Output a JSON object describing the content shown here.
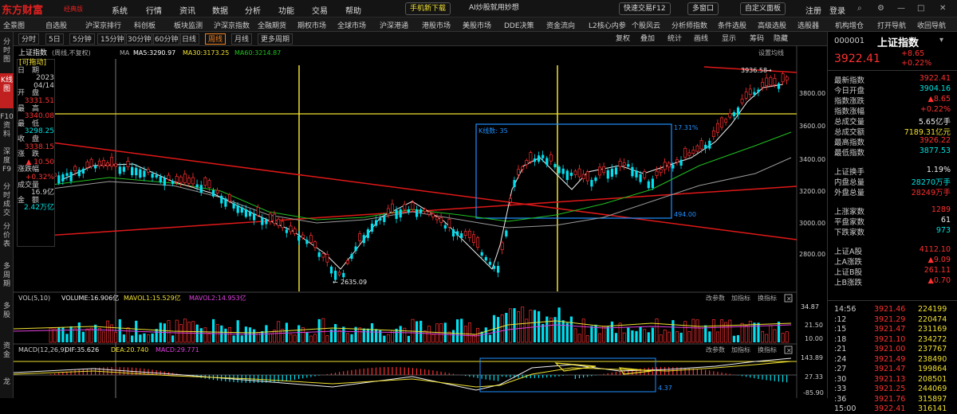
{
  "app": {
    "logo": "东方财富",
    "edition": "经典版"
  },
  "menus": [
    "系统",
    "行情",
    "资讯",
    "数据",
    "分析",
    "功能",
    "交易",
    "帮助"
  ],
  "top_actions": [
    "手机新下载",
    "AI炒股就用妙想",
    "快速交易F12",
    "多窗口",
    "自定义面板"
  ],
  "top_right": [
    "注册",
    "登录"
  ],
  "nav": [
    "全景图",
    "自选股",
    "沪深京排行",
    "科创板",
    "板块监测",
    "沪深京指数",
    "全融期货",
    "期权市场",
    "全球市场",
    "沪深港通",
    "港股市场",
    "美股市场",
    "DDE决策",
    "资金流向",
    "L2核心内参",
    "个股风云",
    "分析师指数",
    "条件选股",
    "高级选股",
    "选股器",
    "机构增仓",
    "打开导航",
    "收回导航"
  ],
  "rail": [
    "分时图",
    "K线图",
    "F10资料",
    "深度F9",
    "分时成交",
    "分价表",
    "多周期",
    "多股",
    "资金",
    "龙"
  ],
  "periods": [
    "分时",
    "5日",
    "5分钟",
    "15分钟",
    "30分钟",
    "60分钟",
    "日线",
    "周线",
    "月线",
    "更多周期"
  ],
  "period_active": "周线",
  "tools": [
    "复权",
    "叠加",
    "统计",
    "画线",
    "显示",
    "筹码",
    "隐藏"
  ],
  "chart_header": {
    "name": "上证指数",
    "adjust": "(周线,不复权)",
    "ma": [
      "MA",
      "MA5:3290.97",
      "MA30:3173.25",
      "MA60:3214.87"
    ],
    "setting": "设置均线"
  },
  "infobox": {
    "title": "[可拖动]",
    "date_label": "日　期",
    "date1": "2023",
    "date2": "04/14",
    "open_label": "开　盘",
    "open": "3331.51",
    "high_label": "最　高",
    "high": "3340.08",
    "low_label": "最　低",
    "low": "3298.25",
    "close_label": "收　盘",
    "close": "3338.15",
    "chg_label": "涨　跌",
    "chg": "▲ 10.50",
    "pct_label": "涨跌幅",
    "pct": "+0.32%",
    "vol_label": "成交量",
    "vol": "16.9亿",
    "amt_label": "金　额",
    "amt": "2.42万亿"
  },
  "annotations": {
    "high_label": "3936.58",
    "low_label": "2635.09",
    "box_k": "K线数: 35",
    "box_pct": "17.31%",
    "box_low": "494.00",
    "macd_low": "4.37"
  },
  "price_axis": [
    "3800.00",
    "3600.00",
    "3400.00",
    "3200.00",
    "3000.00",
    "2800.00"
  ],
  "vol_header": {
    "name": "VOL(5,10)",
    "vol": "VOLUME:16.906亿",
    "m1": "MAVOL1:15.529亿",
    "m2": "MAVOL2:14.953亿"
  },
  "vol_axis": [
    "34.87",
    "21.50",
    "10.00"
  ],
  "macd_header": {
    "name": "MACD(12,26,9)",
    "dif": "DIF:35.626",
    "dea": "DEA:20.740",
    "macd": "MACD:29.771"
  },
  "macd_axis": [
    "143.89",
    "27.33",
    "-85.90"
  ],
  "panel_tools": [
    "改参数",
    "加指标",
    "换指标"
  ],
  "colors": {
    "up": "#ff3030",
    "down": "#00e0f0",
    "ma5": "#ffffff",
    "ma30": "#f0e030",
    "ma60": "#20c020",
    "accent": "#c02020"
  },
  "quote": {
    "code": "000001",
    "name": "上证指数",
    "price": "3922.41",
    "chg": "+8.65",
    "pct": "+0.22%",
    "rows": [
      {
        "label": "最新指数",
        "value": "3922.41",
        "c": "red"
      },
      {
        "label": "今日开盘",
        "value": "3904.16",
        "c": "green"
      },
      {
        "label": "指数涨跌",
        "value": "▲8.65",
        "c": "red"
      },
      {
        "label": "指数涨幅",
        "value": "+0.22%",
        "c": "red"
      },
      {
        "label": "总成交量",
        "value": "5.65亿手",
        "c": "white"
      },
      {
        "label": "总成交额",
        "value": "7189.31亿元",
        "c": "yellow"
      },
      {
        "label": "最高指数",
        "value": "3926.22",
        "c": "red"
      },
      {
        "label": "最低指数",
        "value": "3877.53",
        "c": "green"
      },
      {
        "label": "上证换手",
        "value": "1.19%",
        "c": "white"
      },
      {
        "label": "内盘总量",
        "value": "28270万手",
        "c": "green"
      },
      {
        "label": "外盘总量",
        "value": "28249万手",
        "c": "red"
      },
      {
        "label": "上涨家数",
        "value": "1289",
        "c": "red"
      },
      {
        "label": "平盘家数",
        "value": "61",
        "c": "white"
      },
      {
        "label": "下跌家数",
        "value": "973",
        "c": "green"
      },
      {
        "label": "上证A股",
        "value": "4112.10",
        "c": "red"
      },
      {
        "label": "上A涨跌",
        "value": "▲9.09",
        "c": "red"
      },
      {
        "label": "上证B股",
        "value": "261.11",
        "c": "red"
      },
      {
        "label": "上B涨跌",
        "value": "▲0.70",
        "c": "red"
      }
    ],
    "ticks": [
      {
        "t": "14:56",
        "p": "3921.46",
        "v": "224199"
      },
      {
        "t": ":12",
        "p": "3921.29",
        "v": "220474"
      },
      {
        "t": ":15",
        "p": "3921.47",
        "v": "231169"
      },
      {
        "t": ":18",
        "p": "3921.10",
        "v": "234272"
      },
      {
        "t": ":21",
        "p": "3921.00",
        "v": "237767"
      },
      {
        "t": ":24",
        "p": "3921.49",
        "v": "238490"
      },
      {
        "t": ":27",
        "p": "3921.47",
        "v": "199864"
      },
      {
        "t": ":30",
        "p": "3921.13",
        "v": "208501"
      },
      {
        "t": ":33",
        "p": "3921.25",
        "v": "244069"
      },
      {
        "t": ":36",
        "p": "3921.76",
        "v": "315897"
      },
      {
        "t": "15:00",
        "p": "3922.41",
        "v": "316141"
      }
    ]
  },
  "chart_data": {
    "type": "candlestick",
    "price_range": [
      2600,
      3960
    ],
    "price_ticks": [
      2800,
      3000,
      3200,
      3400,
      3600,
      3800
    ],
    "marked_high": 3936.58,
    "marked_low": 2635.09,
    "series": [
      {
        "name": "MA5",
        "value": 3290.97
      },
      {
        "name": "MA30",
        "value": 3173.25
      },
      {
        "name": "MA60",
        "value": 3214.87
      }
    ]
  }
}
